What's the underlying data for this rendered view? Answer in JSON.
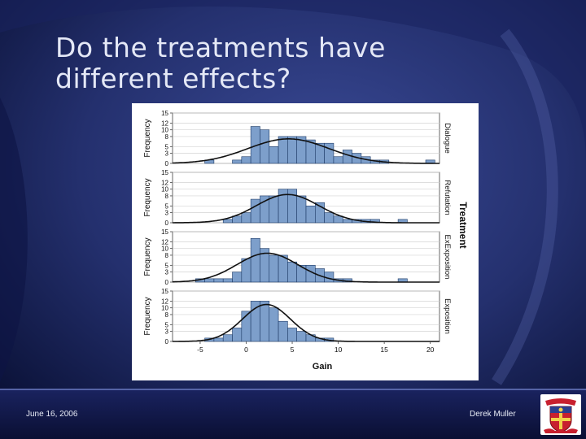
{
  "slide": {
    "title_line1": "Do the treatments have",
    "title_line2": "different effects?",
    "footer_date": "June 16, 2006",
    "footer_author": "Derek Muller"
  },
  "colors": {
    "background_dark": "#0d1540",
    "background_mid": "#2f3d86",
    "bar_fill": "#7d9fcb",
    "bar_stroke": "#1d3a66",
    "curve": "#111111"
  },
  "chart_data": {
    "type": "bar",
    "layout": "faceted-histogram",
    "xlabel": "Gain",
    "ylabel": "Frequency",
    "facet_title": "Treatment",
    "x_ticks": [
      -5,
      0,
      5,
      10,
      15,
      20
    ],
    "xlim": [
      -8,
      21
    ],
    "y_ticks": [
      0,
      3,
      5,
      8,
      10,
      12,
      15
    ],
    "ylim": [
      0,
      15
    ],
    "bin_width": 1,
    "fit": "normal-curve",
    "panels": [
      {
        "name": "Dialogue",
        "bins": [
          {
            "x": -4,
            "y": 1
          },
          {
            "x": -1,
            "y": 1
          },
          {
            "x": 0,
            "y": 2
          },
          {
            "x": 1,
            "y": 11
          },
          {
            "x": 2,
            "y": 10
          },
          {
            "x": 3,
            "y": 5
          },
          {
            "x": 4,
            "y": 8
          },
          {
            "x": 5,
            "y": 8
          },
          {
            "x": 6,
            "y": 8
          },
          {
            "x": 7,
            "y": 7
          },
          {
            "x": 8,
            "y": 6
          },
          {
            "x": 9,
            "y": 6
          },
          {
            "x": 10,
            "y": 2
          },
          {
            "x": 11,
            "y": 4
          },
          {
            "x": 12,
            "y": 3
          },
          {
            "x": 13,
            "y": 2
          },
          {
            "x": 14,
            "y": 1
          },
          {
            "x": 15,
            "y": 1
          },
          {
            "x": 20,
            "y": 1
          }
        ],
        "curve_mean": 4.6,
        "curve_sd": 4.4,
        "curve_peak": 7.3
      },
      {
        "name": "Refutation",
        "bins": [
          {
            "x": -2,
            "y": 1
          },
          {
            "x": -1,
            "y": 2
          },
          {
            "x": 0,
            "y": 3
          },
          {
            "x": 1,
            "y": 7
          },
          {
            "x": 2,
            "y": 8
          },
          {
            "x": 3,
            "y": 8
          },
          {
            "x": 4,
            "y": 10
          },
          {
            "x": 5,
            "y": 10
          },
          {
            "x": 6,
            "y": 8
          },
          {
            "x": 7,
            "y": 5
          },
          {
            "x": 8,
            "y": 6
          },
          {
            "x": 9,
            "y": 3
          },
          {
            "x": 10,
            "y": 2
          },
          {
            "x": 11,
            "y": 1
          },
          {
            "x": 12,
            "y": 1
          },
          {
            "x": 13,
            "y": 1
          },
          {
            "x": 14,
            "y": 1
          },
          {
            "x": 17,
            "y": 1
          }
        ],
        "curve_mean": 4.5,
        "curve_sd": 3.4,
        "curve_peak": 8.4
      },
      {
        "name": "ExExposition",
        "bins": [
          {
            "x": -5,
            "y": 1
          },
          {
            "x": -4,
            "y": 1
          },
          {
            "x": -3,
            "y": 1
          },
          {
            "x": -2,
            "y": 1
          },
          {
            "x": -1,
            "y": 3
          },
          {
            "x": 0,
            "y": 7
          },
          {
            "x": 1,
            "y": 13
          },
          {
            "x": 2,
            "y": 10
          },
          {
            "x": 3,
            "y": 8
          },
          {
            "x": 4,
            "y": 8
          },
          {
            "x": 5,
            "y": 6
          },
          {
            "x": 6,
            "y": 5
          },
          {
            "x": 7,
            "y": 5
          },
          {
            "x": 8,
            "y": 4
          },
          {
            "x": 9,
            "y": 3
          },
          {
            "x": 10,
            "y": 1
          },
          {
            "x": 11,
            "y": 1
          },
          {
            "x": 17,
            "y": 1
          }
        ],
        "curve_mean": 2.3,
        "curve_sd": 3.3,
        "curve_peak": 8.6
      },
      {
        "name": "Exposition",
        "bins": [
          {
            "x": -4,
            "y": 1
          },
          {
            "x": -3,
            "y": 1
          },
          {
            "x": -2,
            "y": 2
          },
          {
            "x": -1,
            "y": 4
          },
          {
            "x": 0,
            "y": 9
          },
          {
            "x": 1,
            "y": 12
          },
          {
            "x": 2,
            "y": 12
          },
          {
            "x": 3,
            "y": 10
          },
          {
            "x": 4,
            "y": 6
          },
          {
            "x": 5,
            "y": 4
          },
          {
            "x": 6,
            "y": 3
          },
          {
            "x": 7,
            "y": 2
          },
          {
            "x": 8,
            "y": 1
          },
          {
            "x": 9,
            "y": 1
          }
        ],
        "curve_mean": 2.2,
        "curve_sd": 2.6,
        "curve_peak": 11.0
      }
    ]
  }
}
